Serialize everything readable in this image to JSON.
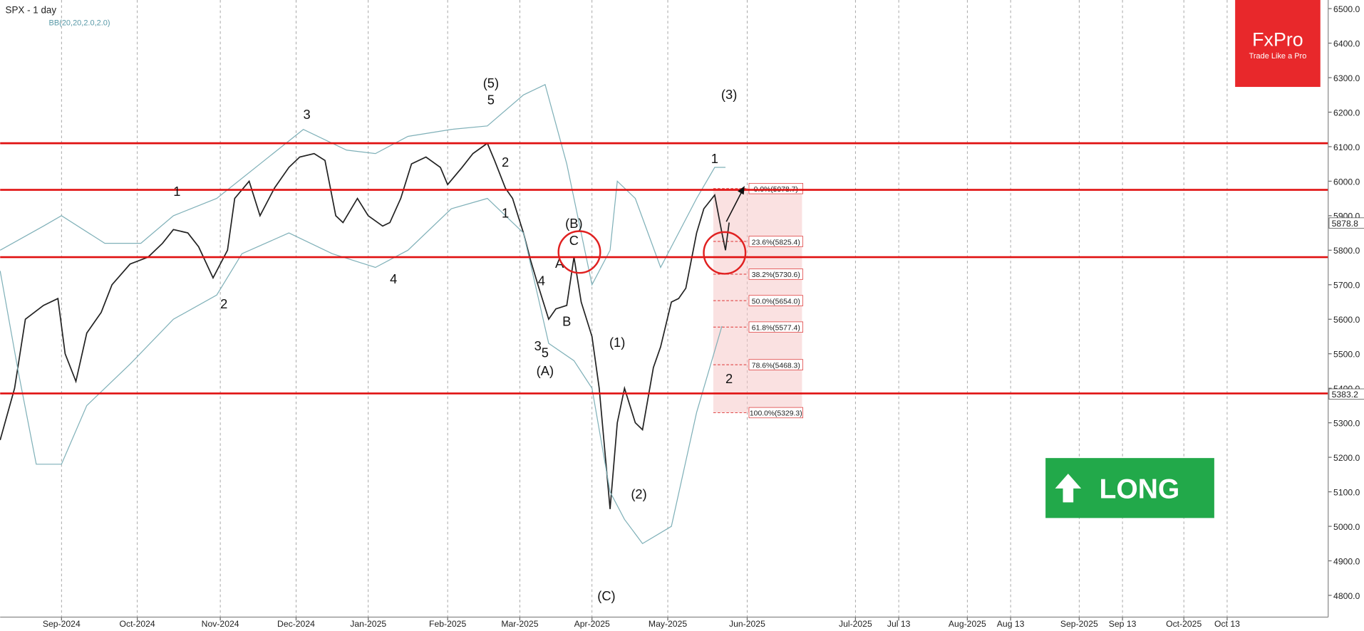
{
  "chart_data": {
    "type": "line",
    "title": "SPX - 1 day",
    "subtitle": "BB(20,20,2.0,2.0)",
    "brand": "FxPro",
    "slogan": "Trade Like a Pro",
    "signal": "LONG",
    "xlim": [
      0,
      368
    ],
    "ylim": [
      4737,
      6525
    ],
    "grid": true,
    "xticks": [
      {
        "value": 17,
        "label": "Sep-2024"
      },
      {
        "value": 38,
        "label": "Oct-2024"
      },
      {
        "value": 61,
        "label": "Nov-2024"
      },
      {
        "value": 82,
        "label": "Dec-2024"
      },
      {
        "value": 102,
        "label": "Jan-2025"
      },
      {
        "value": 124,
        "label": "Feb-2025"
      },
      {
        "value": 144,
        "label": "Mar-2025"
      },
      {
        "value": 164,
        "label": "Apr-2025"
      },
      {
        "value": 185,
        "label": "May-2025"
      },
      {
        "value": 207,
        "label": "Jun-2025"
      },
      {
        "value": 237,
        "label": "Jul-2025"
      },
      {
        "value": 249,
        "label": "Jul 13"
      },
      {
        "value": 268,
        "label": "Aug-2025"
      },
      {
        "value": 280,
        "label": "Aug 13"
      },
      {
        "value": 299,
        "label": "Sep-2025"
      },
      {
        "value": 311,
        "label": "Sep 13"
      },
      {
        "value": 328,
        "label": "Oct-2025"
      },
      {
        "value": 340,
        "label": "Oct 13"
      }
    ],
    "yticks": [
      {
        "value": 4800,
        "label": "4800.0"
      },
      {
        "value": 4900,
        "label": "4900.0"
      },
      {
        "value": 5000,
        "label": "5000.0"
      },
      {
        "value": 5100,
        "label": "5100.0"
      },
      {
        "value": 5200,
        "label": "5200.0"
      },
      {
        "value": 5300,
        "label": "5300.0"
      },
      {
        "value": 5400,
        "label": "5400.0"
      },
      {
        "value": 5500,
        "label": "5500.0"
      },
      {
        "value": 5600,
        "label": "5600.0"
      },
      {
        "value": 5700,
        "label": "5700.0"
      },
      {
        "value": 5800,
        "label": "5800.0"
      },
      {
        "value": 5900,
        "label": "5900.0"
      },
      {
        "value": 6000,
        "label": "6000.0"
      },
      {
        "value": 6100,
        "label": "6100.0"
      },
      {
        "value": 6200,
        "label": "6200.0"
      },
      {
        "value": 6300,
        "label": "6300.0"
      },
      {
        "value": 6400,
        "label": "6400.0"
      },
      {
        "value": 6500,
        "label": "6500.0"
      }
    ],
    "series": [
      {
        "name": "SPX",
        "color": "#222222",
        "x": [
          0,
          4,
          7,
          12,
          16,
          18,
          21,
          24,
          28,
          31,
          36,
          41,
          45,
          48,
          52,
          55,
          59,
          63,
          65,
          69,
          72,
          76,
          80,
          83,
          87,
          90,
          93,
          95,
          99,
          102,
          106,
          108,
          111,
          114,
          118,
          122,
          124,
          128,
          131,
          135,
          137,
          140,
          142,
          145,
          147,
          149,
          152,
          154,
          157,
          159,
          161,
          164,
          166,
          169,
          171,
          173,
          176,
          178,
          181,
          183,
          186,
          188,
          190,
          193,
          195,
          198,
          200,
          201,
          202
        ],
        "values": [
          5250,
          5400,
          5600,
          5640,
          5660,
          5500,
          5420,
          5560,
          5620,
          5700,
          5760,
          5780,
          5820,
          5860,
          5850,
          5810,
          5720,
          5800,
          5950,
          6000,
          5900,
          5980,
          6040,
          6070,
          6080,
          6060,
          5900,
          5880,
          5950,
          5900,
          5870,
          5880,
          5950,
          6050,
          6070,
          6040,
          5990,
          6040,
          6080,
          6110,
          6060,
          5980,
          5950,
          5850,
          5770,
          5700,
          5600,
          5630,
          5640,
          5780,
          5650,
          5550,
          5400,
          5050,
          5300,
          5400,
          5300,
          5280,
          5460,
          5520,
          5650,
          5660,
          5690,
          5850,
          5920,
          5960,
          5850,
          5800,
          5880
        ]
      },
      {
        "name": "BB upper",
        "color": "#7fb0b8",
        "x": [
          0,
          12,
          17,
          29,
          39,
          48,
          60,
          72,
          84,
          96,
          104,
          113,
          125,
          135,
          145,
          151,
          157,
          164,
          169,
          171,
          176,
          183,
          193,
          198,
          201
        ],
        "values": [
          5800,
          5870,
          5900,
          5820,
          5820,
          5900,
          5950,
          6050,
          6150,
          6090,
          6080,
          6130,
          6150,
          6160,
          6250,
          6280,
          6050,
          5700,
          5800,
          6000,
          5950,
          5750,
          5950,
          6040,
          6040
        ]
      },
      {
        "name": "BB lower",
        "color": "#7fb0b8",
        "x": [
          0,
          5,
          10,
          17,
          24,
          36,
          48,
          60,
          67,
          80,
          92,
          104,
          113,
          125,
          135,
          145,
          152,
          159,
          164,
          169,
          173,
          178,
          186,
          193,
          200
        ],
        "values": [
          5740,
          5450,
          5180,
          5180,
          5350,
          5470,
          5600,
          5670,
          5790,
          5850,
          5790,
          5750,
          5800,
          5920,
          5950,
          5850,
          5530,
          5480,
          5400,
          5100,
          5020,
          4950,
          5000,
          5330,
          5580
        ]
      }
    ],
    "levels": [
      6110,
      5975,
      5780,
      5385
    ],
    "fib_levels": [
      {
        "label": "0.0%(5978.7)",
        "value": 5978.7
      },
      {
        "label": "23.6%(5825.4)",
        "value": 5825.4
      },
      {
        "label": "38.2%(5730.6)",
        "value": 5730.6
      },
      {
        "label": "50.0%(5654.0)",
        "value": 5654.0
      },
      {
        "label": "61.8%(5577.4)",
        "value": 5577.4
      },
      {
        "label": "78.6%(5468.3)",
        "value": 5468.3
      },
      {
        "label": "100.0%(5329.3)",
        "value": 5329.3
      }
    ],
    "price_tags": [
      {
        "value": 5878.8,
        "color": "#ffffff"
      },
      {
        "value": 5383.2,
        "color": "#ffffff"
      }
    ],
    "annotations": [
      {
        "text": "1",
        "x": 49,
        "y": 5958
      },
      {
        "text": "3",
        "x": 85,
        "y": 6180
      },
      {
        "text": "2",
        "x": 62,
        "y": 5631
      },
      {
        "text": "4",
        "x": 109,
        "y": 5704
      },
      {
        "text": "5",
        "x": 136,
        "y": 6223
      },
      {
        "text": "(5)",
        "x": 136,
        "y": 6271
      },
      {
        "text": "2",
        "x": 140,
        "y": 6042
      },
      {
        "text": "1",
        "x": 140,
        "y": 5895
      },
      {
        "text": "(B)",
        "x": 159,
        "y": 5865
      },
      {
        "text": "C",
        "x": 159,
        "y": 5815
      },
      {
        "text": "A",
        "x": 155,
        "y": 5749
      },
      {
        "text": "4",
        "x": 150,
        "y": 5699
      },
      {
        "text": "B",
        "x": 157,
        "y": 5581
      },
      {
        "text": "3",
        "x": 149,
        "y": 5510
      },
      {
        "text": "5",
        "x": 151,
        "y": 5490
      },
      {
        "text": "(A)",
        "x": 151,
        "y": 5437
      },
      {
        "text": "(1)",
        "x": 171,
        "y": 5520
      },
      {
        "text": "(2)",
        "x": 177,
        "y": 5080
      },
      {
        "text": "(C)",
        "x": 168,
        "y": 4785
      },
      {
        "text": "1",
        "x": 198,
        "y": 6052
      },
      {
        "text": "(3)",
        "x": 202,
        "y": 6238
      },
      {
        "text": "2",
        "x": 202,
        "y": 5415
      }
    ]
  }
}
